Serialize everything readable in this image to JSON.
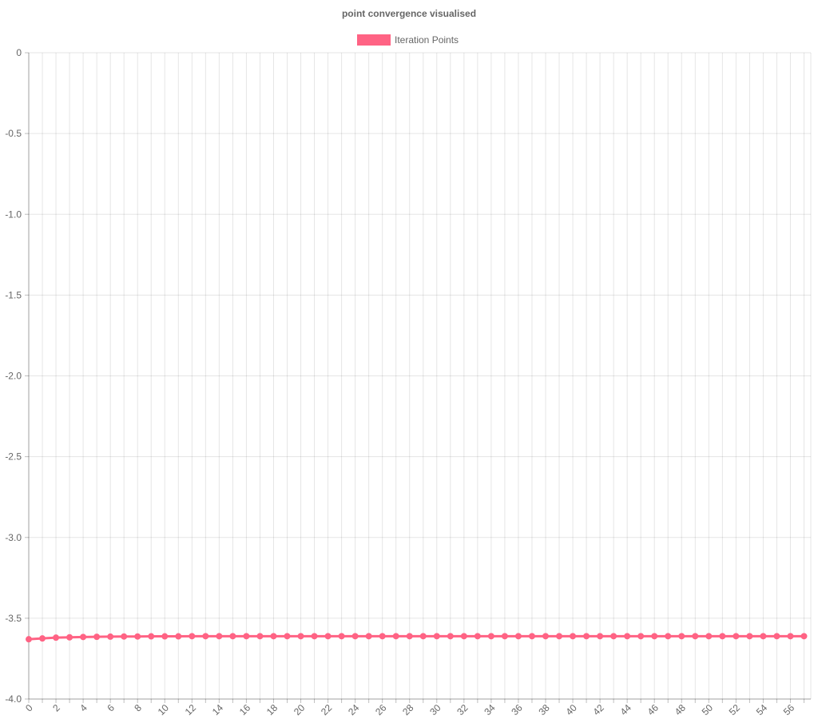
{
  "chart_data": {
    "type": "line",
    "title": "point convergence visualised",
    "legend": {
      "position": "top",
      "entries": [
        {
          "label": "Iteration Points",
          "color": "#ff6384"
        }
      ]
    },
    "xlabel": "",
    "ylabel": "",
    "x": [
      0,
      1,
      2,
      3,
      4,
      5,
      6,
      7,
      8,
      9,
      10,
      11,
      12,
      13,
      14,
      15,
      16,
      17,
      18,
      19,
      20,
      21,
      22,
      23,
      24,
      25,
      26,
      27,
      28,
      29,
      30,
      31,
      32,
      33,
      34,
      35,
      36,
      37,
      38,
      39,
      40,
      41,
      42,
      43,
      44,
      45,
      46,
      47,
      48,
      49,
      50,
      51,
      52,
      53,
      54,
      55,
      56,
      57
    ],
    "x_tick_labels": [
      "0",
      "2",
      "4",
      "6",
      "8",
      "10",
      "12",
      "14",
      "16",
      "18",
      "20",
      "22",
      "24",
      "26",
      "28",
      "30",
      "32",
      "34",
      "36",
      "38",
      "40",
      "42",
      "44",
      "46",
      "48",
      "50",
      "52",
      "54",
      "56"
    ],
    "ylim": [
      -4.0,
      0
    ],
    "y_ticks": [
      0,
      -0.5,
      -1.0,
      -1.5,
      -2.0,
      -2.5,
      -3.0,
      -3.5,
      -4.0
    ],
    "y_tick_labels": [
      "0",
      "-0.5",
      "-1.0",
      "-1.5",
      "-2.0",
      "-2.5",
      "-3.0",
      "-3.5",
      "-4.0"
    ],
    "grid": true,
    "series": [
      {
        "name": "Iteration Points",
        "color": "#ff6384",
        "values": [
          -3.63,
          -3.625,
          -3.62,
          -3.618,
          -3.616,
          -3.615,
          -3.614,
          -3.613,
          -3.613,
          -3.612,
          -3.612,
          -3.612,
          -3.611,
          -3.611,
          -3.611,
          -3.611,
          -3.611,
          -3.611,
          -3.611,
          -3.611,
          -3.611,
          -3.611,
          -3.611,
          -3.611,
          -3.611,
          -3.611,
          -3.611,
          -3.611,
          -3.611,
          -3.611,
          -3.611,
          -3.611,
          -3.611,
          -3.611,
          -3.611,
          -3.611,
          -3.611,
          -3.611,
          -3.611,
          -3.611,
          -3.611,
          -3.611,
          -3.611,
          -3.611,
          -3.611,
          -3.611,
          -3.611,
          -3.611,
          -3.611,
          -3.611,
          -3.611,
          -3.611,
          -3.611,
          -3.611,
          -3.611,
          -3.611,
          -3.611,
          -3.611
        ]
      }
    ]
  }
}
